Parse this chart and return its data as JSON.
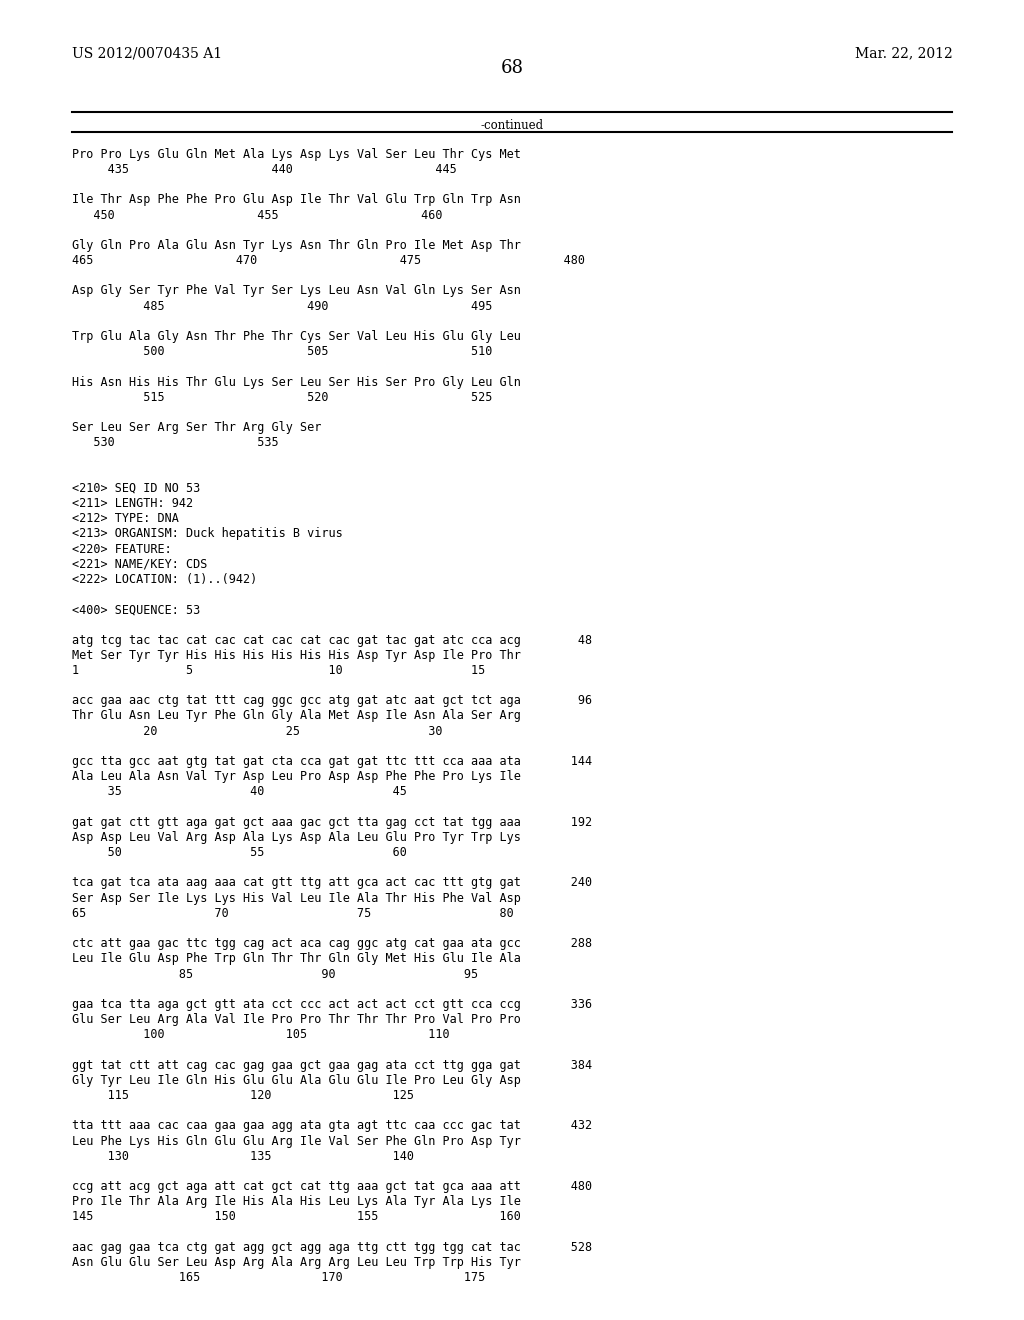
{
  "header_left": "US 2012/0070435 A1",
  "header_right": "Mar. 22, 2012",
  "page_number": "68",
  "continued_label": "-continued",
  "background_color": "#ffffff",
  "text_color": "#000000",
  "font_size": 8.5,
  "mono_font": "DejaVu Sans Mono",
  "header_font_size": 10,
  "page_num_font_size": 13,
  "content": [
    "Pro Pro Lys Glu Gln Met Ala Lys Asp Lys Val Ser Leu Thr Cys Met",
    "     435                    440                    445",
    "",
    "Ile Thr Asp Phe Phe Pro Glu Asp Ile Thr Val Glu Trp Gln Trp Asn",
    "   450                    455                    460",
    "",
    "Gly Gln Pro Ala Glu Asn Tyr Lys Asn Thr Gln Pro Ile Met Asp Thr",
    "465                    470                    475                    480",
    "",
    "Asp Gly Ser Tyr Phe Val Tyr Ser Lys Leu Asn Val Gln Lys Ser Asn",
    "          485                    490                    495",
    "",
    "Trp Glu Ala Gly Asn Thr Phe Thr Cys Ser Val Leu His Glu Gly Leu",
    "          500                    505                    510",
    "",
    "His Asn His His Thr Glu Lys Ser Leu Ser His Ser Pro Gly Leu Gln",
    "          515                    520                    525",
    "",
    "Ser Leu Ser Arg Ser Thr Arg Gly Ser",
    "   530                    535",
    "",
    "",
    "<210> SEQ ID NO 53",
    "<211> LENGTH: 942",
    "<212> TYPE: DNA",
    "<213> ORGANISM: Duck hepatitis B virus",
    "<220> FEATURE:",
    "<221> NAME/KEY: CDS",
    "<222> LOCATION: (1)..(942)",
    "",
    "<400> SEQUENCE: 53",
    "",
    "atg tcg tac tac cat cac cat cac cat cac gat tac gat atc cca acg        48",
    "Met Ser Tyr Tyr His His His His His His Asp Tyr Asp Ile Pro Thr",
    "1               5                   10                  15",
    "",
    "acc gaa aac ctg tat ttt cag ggc gcc atg gat atc aat gct tct aga        96",
    "Thr Glu Asn Leu Tyr Phe Gln Gly Ala Met Asp Ile Asn Ala Ser Arg",
    "          20                  25                  30",
    "",
    "gcc tta gcc aat gtg tat gat cta cca gat gat ttc ttt cca aaa ata       144",
    "Ala Leu Ala Asn Val Tyr Asp Leu Pro Asp Asp Phe Phe Pro Lys Ile",
    "     35                  40                  45",
    "",
    "gat gat ctt gtt aga gat gct aaa gac gct tta gag cct tat tgg aaa       192",
    "Asp Asp Leu Val Arg Asp Ala Lys Asp Ala Leu Glu Pro Tyr Trp Lys",
    "     50                  55                  60",
    "",
    "tca gat tca ata aag aaa cat gtt ttg att gca act cac ttt gtg gat       240",
    "Ser Asp Ser Ile Lys Lys His Val Leu Ile Ala Thr His Phe Val Asp",
    "65                  70                  75                  80",
    "",
    "ctc att gaa gac ttc tgg cag act aca cag ggc atg cat gaa ata gcc       288",
    "Leu Ile Glu Asp Phe Trp Gln Thr Thr Gln Gly Met His Glu Ile Ala",
    "               85                  90                  95",
    "",
    "gaa tca tta aga gct gtt ata cct ccc act act act cct gtt cca ccg       336",
    "Glu Ser Leu Arg Ala Val Ile Pro Pro Thr Thr Thr Pro Val Pro Pro",
    "          100                 105                 110",
    "",
    "ggt tat ctt att cag cac gag gaa gct gaa gag ata cct ttg gga gat       384",
    "Gly Tyr Leu Ile Gln His Glu Glu Ala Glu Glu Ile Pro Leu Gly Asp",
    "     115                 120                 125",
    "",
    "tta ttt aaa cac caa gaa gaa agg ata gta agt ttc caa ccc gac tat       432",
    "Leu Phe Lys His Gln Glu Glu Arg Ile Val Ser Phe Gln Pro Asp Tyr",
    "     130                 135                 140",
    "",
    "ccg att acg gct aga att cat gct cat ttg aaa gct tat gca aaa att       480",
    "Pro Ile Thr Ala Arg Ile His Ala His Leu Lys Ala Tyr Ala Lys Ile",
    "145                 150                 155                 160",
    "",
    "aac gag gaa tca ctg gat agg gct agg aga ttg ctt tgg tgg cat tac       528",
    "Asn Glu Glu Ser Leu Asp Arg Ala Arg Arg Leu Leu Trp Trp His Tyr",
    "               165                 170                 175"
  ]
}
